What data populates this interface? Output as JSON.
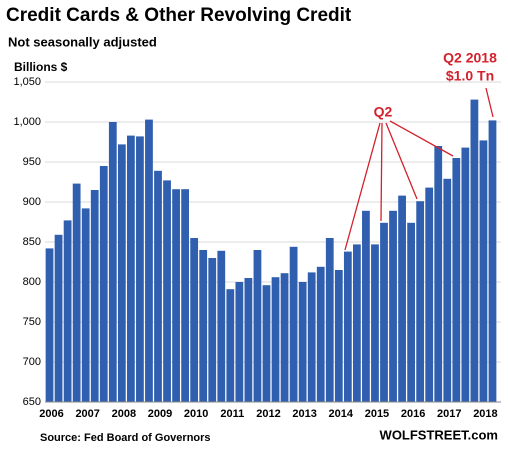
{
  "chart_data": {
    "type": "bar",
    "title": "Credit Cards & Other Revolving Credit",
    "subtitle": "Not seasonally adjusted",
    "y_label": "Billions $",
    "source": "Source: Fed Board of Governors",
    "brand": "WOLFSTREET.com",
    "annotations": [
      "Q2",
      "Q2 2018",
      "$1.0 Tn"
    ],
    "categories": [
      "2006",
      null,
      null,
      null,
      "2007",
      null,
      null,
      null,
      "2008",
      null,
      null,
      null,
      "2009",
      null,
      null,
      null,
      "2010",
      null,
      null,
      null,
      "2011",
      null,
      null,
      null,
      "2012",
      null,
      null,
      null,
      "2013",
      null,
      null,
      null,
      "2014",
      null,
      null,
      null,
      "2015",
      null,
      null,
      null,
      "2016",
      null,
      null,
      null,
      "2017",
      null,
      null,
      null,
      "2018",
      null
    ],
    "values": [
      842,
      859,
      877,
      923,
      892,
      915,
      945,
      1000,
      972,
      983,
      982,
      1003,
      939,
      927,
      916,
      916,
      855,
      840,
      830,
      839,
      791,
      800,
      805,
      840,
      796,
      806,
      811,
      844,
      800,
      812,
      819,
      855,
      815,
      838,
      847,
      889,
      847,
      874,
      889,
      908,
      874,
      901,
      918,
      970,
      929,
      955,
      968,
      1028,
      977,
      1002
    ],
    "color": "#2f5fae",
    "ylim": [
      650,
      1050
    ],
    "yticks": [
      650,
      700,
      750,
      800,
      850,
      900,
      950,
      {
        "value": 1000,
        "label": "1,000"
      },
      {
        "value": 1050,
        "label": "1,050"
      }
    ],
    "grid": true
  }
}
